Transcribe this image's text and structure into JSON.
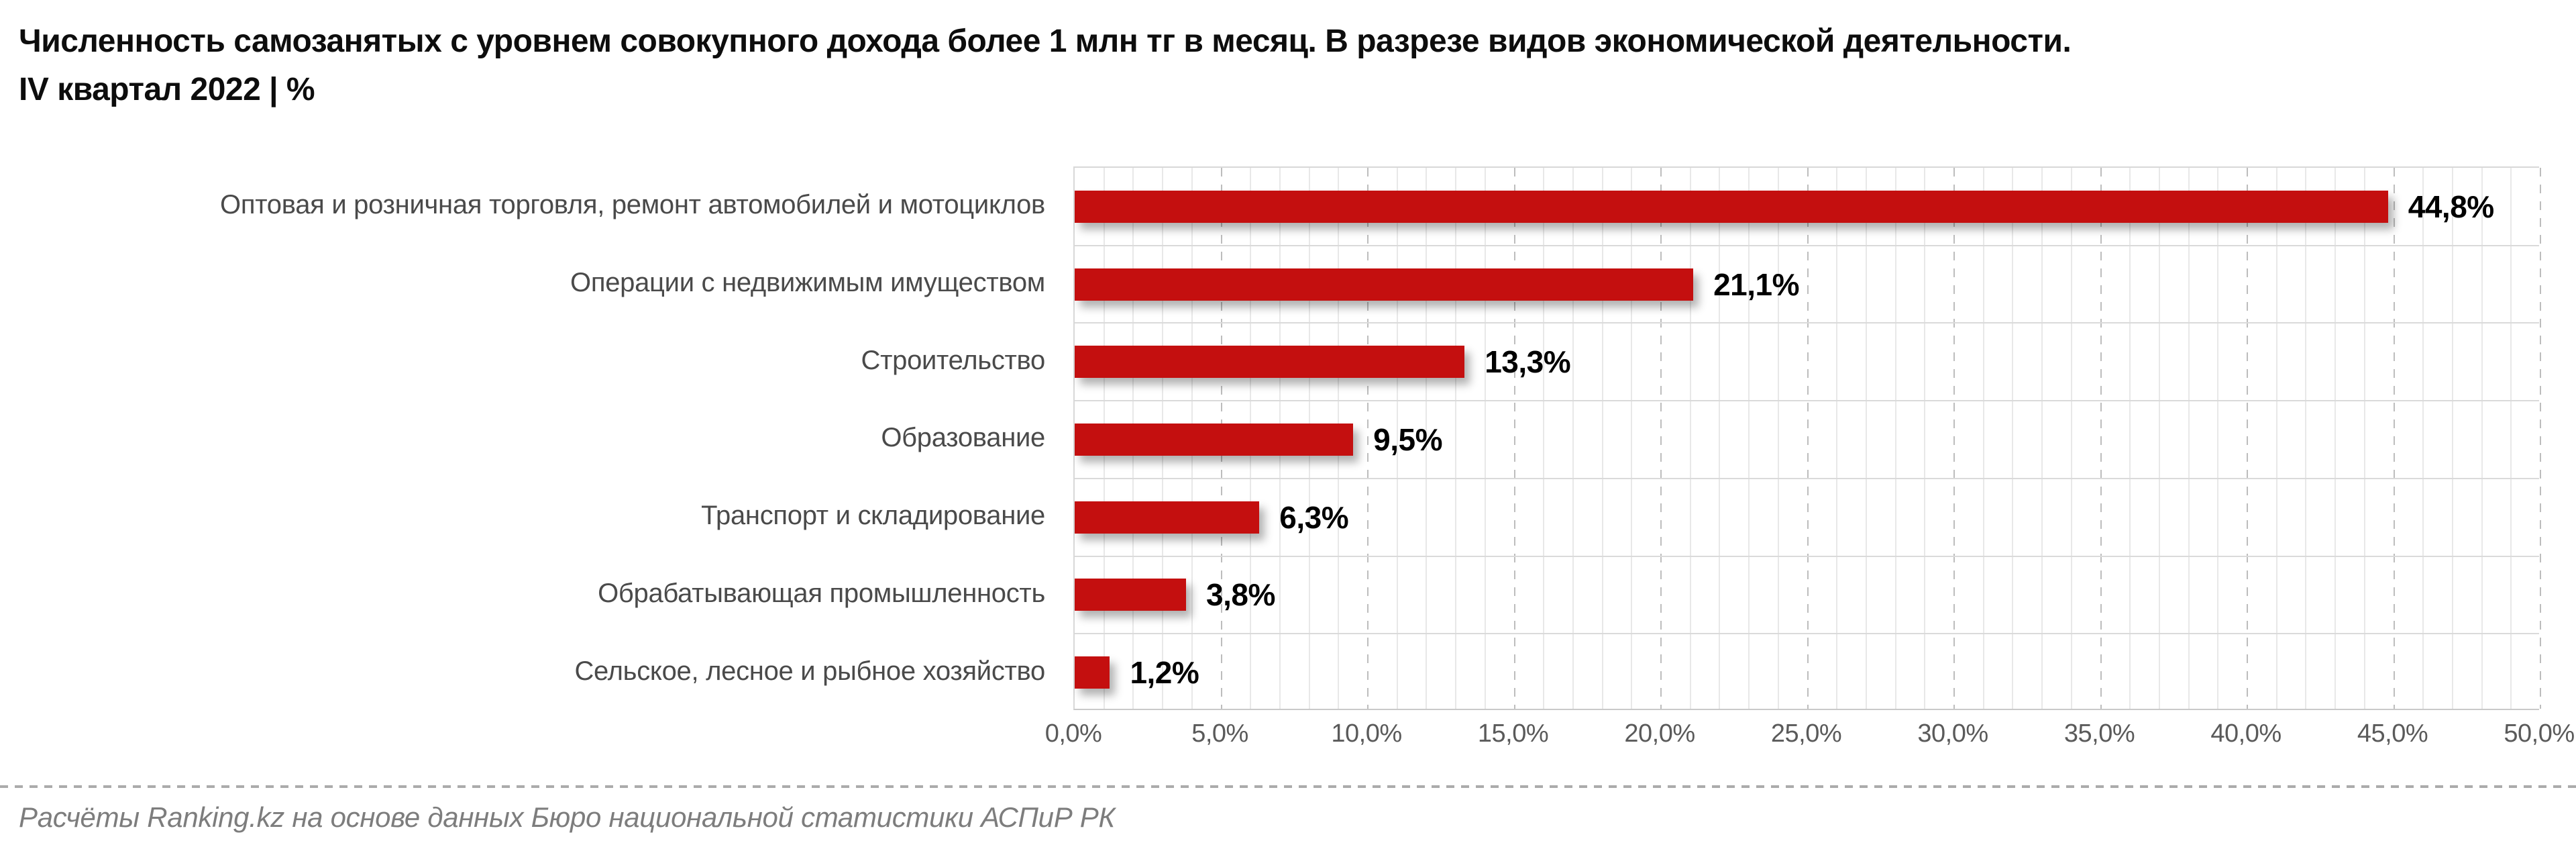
{
  "chart_data": {
    "type": "bar",
    "orientation": "horizontal",
    "title_line1": "Численность самозанятых с уровнем совокупного дохода более 1 млн тг в месяц. В разрезе видов экономической деятельности.",
    "title_line2": "IV квартал 2022 | %",
    "categories": [
      "Оптовая и розничная торговля, ремонт автомобилей и мотоциклов",
      "Операции с недвижимым имуществом",
      "Строительство",
      "Образование",
      "Транспорт и складирование",
      "Обрабатывающая промышленность",
      "Сельское, лесное и рыбное хозяйство"
    ],
    "values": [
      44.8,
      21.1,
      13.3,
      9.5,
      6.3,
      3.8,
      1.2
    ],
    "value_labels": [
      "44,8%",
      "21,1%",
      "13,3%",
      "9,5%",
      "6,3%",
      "3,8%",
      "1,2%"
    ],
    "xlim": [
      0,
      50
    ],
    "x_tick_values": [
      0,
      5,
      10,
      15,
      20,
      25,
      30,
      35,
      40,
      45,
      50
    ],
    "x_tick_labels": [
      "0,0%",
      "5,0%",
      "10,0%",
      "15,0%",
      "20,0%",
      "25,0%",
      "30,0%",
      "35,0%",
      "40,0%",
      "45,0%",
      "50,0%"
    ],
    "grid": {
      "minor_step_pct": 1,
      "major_step_pct": 5,
      "style_major": "dashed",
      "style_minor": "solid"
    },
    "bar_color": "#c40f0f",
    "legend": "none",
    "xlabel": "",
    "ylabel": ""
  },
  "footer": {
    "source": "Расчёты Ranking.kz на основе данных Бюро национальной статистики АСПиР РК"
  }
}
